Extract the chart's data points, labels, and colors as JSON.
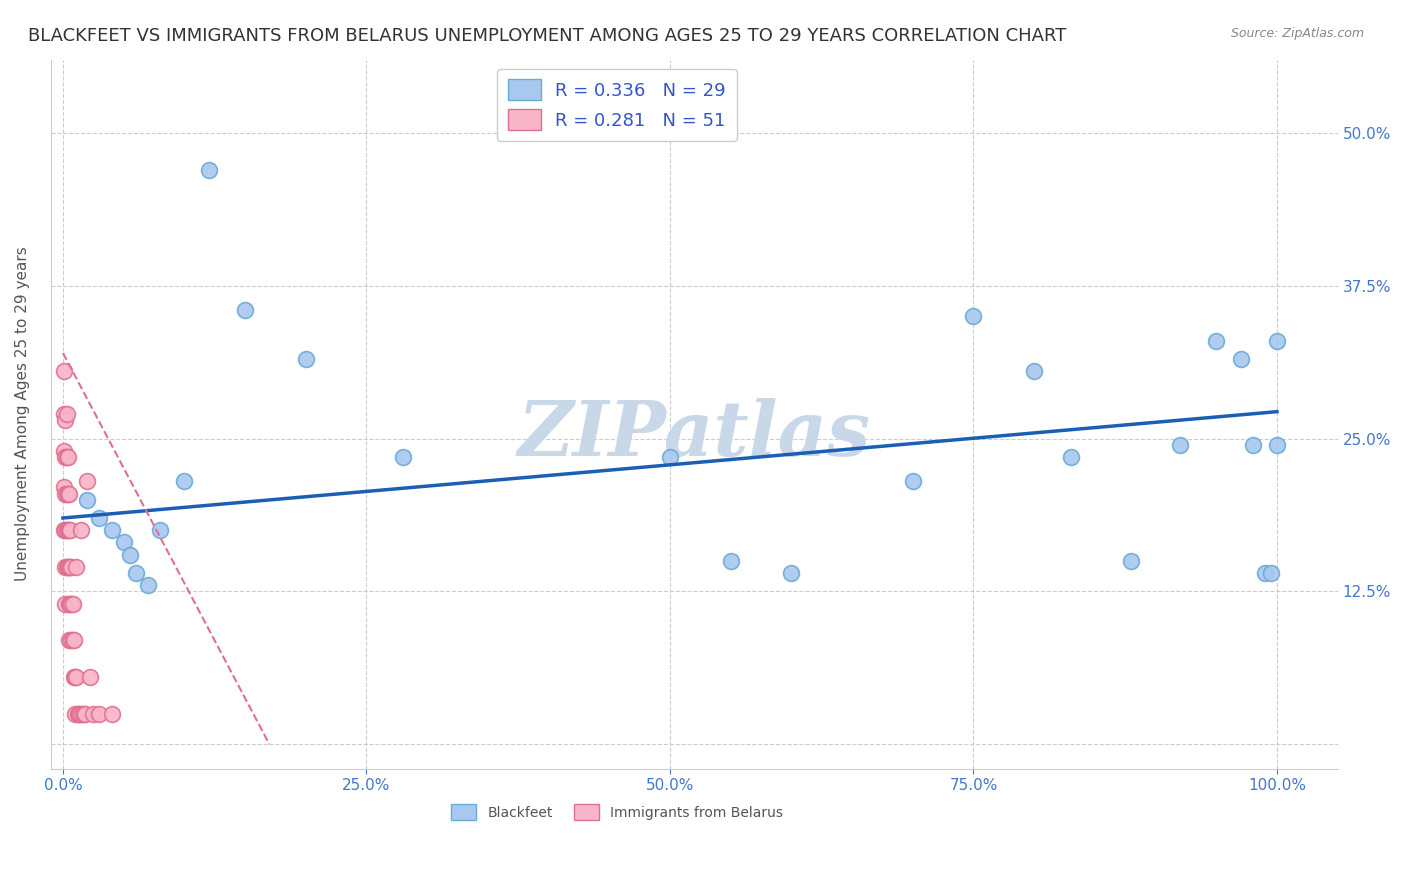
{
  "title": "BLACKFEET VS IMMIGRANTS FROM BELARUS UNEMPLOYMENT AMONG AGES 25 TO 29 YEARS CORRELATION CHART",
  "source": "Source: ZipAtlas.com",
  "ylabel": "Unemployment Among Ages 25 to 29 years",
  "watermark": "ZIPatlas",
  "series": [
    {
      "label": "Blackfeet",
      "color": "#a8c8f0",
      "edge_color": "#6aaad4",
      "R": 0.336,
      "N": 29,
      "trend_color": "#1a5fb4",
      "trend_style": "solid",
      "x": [
        0.02,
        0.03,
        0.04,
        0.05,
        0.055,
        0.06,
        0.07,
        0.08,
        0.1,
        0.12,
        0.15,
        0.2,
        0.28,
        0.5,
        0.55,
        0.6,
        0.7,
        0.75,
        0.8,
        0.83,
        0.88,
        0.92,
        0.95,
        0.97,
        0.98,
        0.99,
        0.995,
        1.0,
        1.0
      ],
      "y": [
        0.2,
        0.185,
        0.175,
        0.165,
        0.155,
        0.14,
        0.13,
        0.175,
        0.215,
        0.47,
        0.355,
        0.315,
        0.235,
        0.235,
        0.15,
        0.14,
        0.215,
        0.35,
        0.305,
        0.235,
        0.15,
        0.245,
        0.33,
        0.315,
        0.245,
        0.14,
        0.14,
        0.33,
        0.245
      ]
    },
    {
      "label": "Immigrants from Belarus",
      "color": "#f8b4c8",
      "edge_color": "#e07090",
      "R": 0.281,
      "N": 51,
      "trend_color": "#e07090",
      "trend_style": "dashed",
      "x": [
        0.001,
        0.001,
        0.001,
        0.001,
        0.001,
        0.002,
        0.002,
        0.002,
        0.002,
        0.002,
        0.002,
        0.003,
        0.003,
        0.003,
        0.003,
        0.003,
        0.004,
        0.004,
        0.004,
        0.004,
        0.005,
        0.005,
        0.005,
        0.005,
        0.005,
        0.006,
        0.006,
        0.006,
        0.007,
        0.007,
        0.007,
        0.008,
        0.008,
        0.009,
        0.009,
        0.01,
        0.01,
        0.011,
        0.011,
        0.012,
        0.013,
        0.014,
        0.015,
        0.016,
        0.017,
        0.018,
        0.02,
        0.022,
        0.025,
        0.03,
        0.04
      ],
      "y": [
        0.305,
        0.27,
        0.24,
        0.21,
        0.175,
        0.265,
        0.235,
        0.205,
        0.175,
        0.145,
        0.115,
        0.27,
        0.235,
        0.205,
        0.175,
        0.145,
        0.235,
        0.205,
        0.175,
        0.145,
        0.205,
        0.175,
        0.145,
        0.115,
        0.085,
        0.175,
        0.145,
        0.115,
        0.145,
        0.115,
        0.085,
        0.115,
        0.085,
        0.085,
        0.055,
        0.055,
        0.025,
        0.145,
        0.055,
        0.025,
        0.025,
        0.025,
        0.175,
        0.025,
        0.025,
        0.025,
        0.215,
        0.055,
        0.025,
        0.025,
        0.025
      ]
    }
  ],
  "xlim": [
    -0.01,
    1.05
  ],
  "ylim": [
    -0.02,
    0.56
  ],
  "xticks": [
    0.0,
    0.25,
    0.5,
    0.75,
    1.0
  ],
  "xtick_labels": [
    "0.0%",
    "25.0%",
    "50.0%",
    "75.0%",
    "100.0%"
  ],
  "ytick_positions": [
    0.0,
    0.125,
    0.25,
    0.375,
    0.5
  ],
  "ytick_labels_right": [
    "",
    "12.5%",
    "25.0%",
    "37.5%",
    "50.0%"
  ],
  "grid_color": "#cccccc",
  "background_color": "#ffffff",
  "title_fontsize": 13,
  "axis_fontsize": 11,
  "tick_fontsize": 11,
  "legend_fontsize": 13,
  "marker_size": 130,
  "watermark_color": "#c8d8e8",
  "watermark_fontsize": 55,
  "trend_blue_x0": 0.0,
  "trend_blue_y0": 0.185,
  "trend_blue_x1": 1.0,
  "trend_blue_y1": 0.272,
  "trend_pink_x0": 0.0,
  "trend_pink_y0": 0.32,
  "trend_pink_x1": 0.17,
  "trend_pink_y1": 0.0
}
